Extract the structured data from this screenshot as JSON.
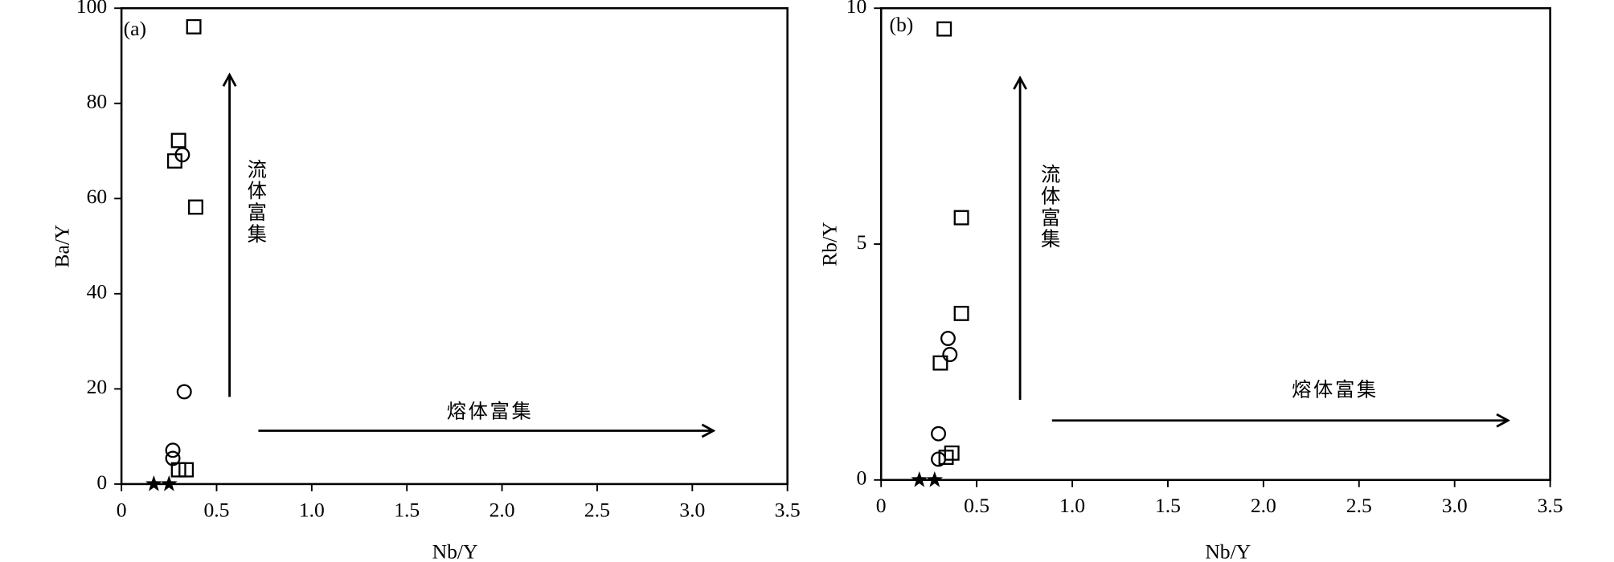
{
  "chart_data": [
    {
      "type": "scatter",
      "xlabel": "Nb/Y",
      "ylabel": "Ba/Y",
      "annotations": [
        "(a)",
        "流体富集",
        "熔体富集"
      ],
      "xlim": [
        0,
        3.5
      ],
      "ylim": [
        0,
        100
      ],
      "xticks": [
        0,
        0.5,
        {
          "value": 1,
          "label": "1.0"
        },
        1.5,
        {
          "value": 2,
          "label": "2.0"
        },
        2.5,
        {
          "value": 3,
          "label": "3.0"
        },
        3.5
      ],
      "yticks": [
        0,
        20,
        40,
        60,
        80,
        100
      ],
      "series": [
        {
          "marker": "square",
          "color": "#000000",
          "x": [
            0.38,
            0.3,
            0.28,
            0.39,
            0.3,
            0.34
          ],
          "values": [
            96.1,
            72.2,
            67.9,
            58.2,
            3.0,
            3.0
          ]
        },
        {
          "marker": "circle",
          "color": "#000000",
          "x": [
            0.32,
            0.33,
            0.27,
            0.27
          ],
          "values": [
            69.2,
            19.4,
            7.1,
            5.4
          ]
        },
        {
          "marker": "star",
          "color": "#000000",
          "x": [
            0.17,
            0.25
          ],
          "values": [
            0,
            0
          ]
        }
      ]
    },
    {
      "type": "scatter",
      "xlabel": "Nb/Y",
      "ylabel": "Rb/Y",
      "annotations": [
        "(b)",
        "流体富集",
        "熔体富集"
      ],
      "xlim": [
        0,
        3.5
      ],
      "ylim": [
        0,
        10
      ],
      "xticks": [
        0,
        0.5,
        {
          "value": 1,
          "label": "1.0"
        },
        1.5,
        {
          "value": 2,
          "label": "2.0"
        },
        2.5,
        {
          "value": 3,
          "label": "3.0"
        },
        3.5
      ],
      "yticks": [
        0,
        5,
        10
      ],
      "series": [
        {
          "marker": "square",
          "color": "#000000",
          "x": [
            0.33,
            0.42,
            0.42,
            0.31,
            0.34,
            0.37
          ],
          "values": [
            9.56,
            5.56,
            3.53,
            2.48,
            0.48,
            0.57
          ]
        },
        {
          "marker": "circle",
          "color": "#000000",
          "x": [
            0.35,
            0.36,
            0.3,
            0.3
          ],
          "values": [
            3.0,
            2.66,
            0.98,
            0.44
          ]
        },
        {
          "marker": "star",
          "color": "#000000",
          "x": [
            0.2,
            0.28
          ],
          "values": [
            0,
            0
          ]
        }
      ]
    }
  ]
}
